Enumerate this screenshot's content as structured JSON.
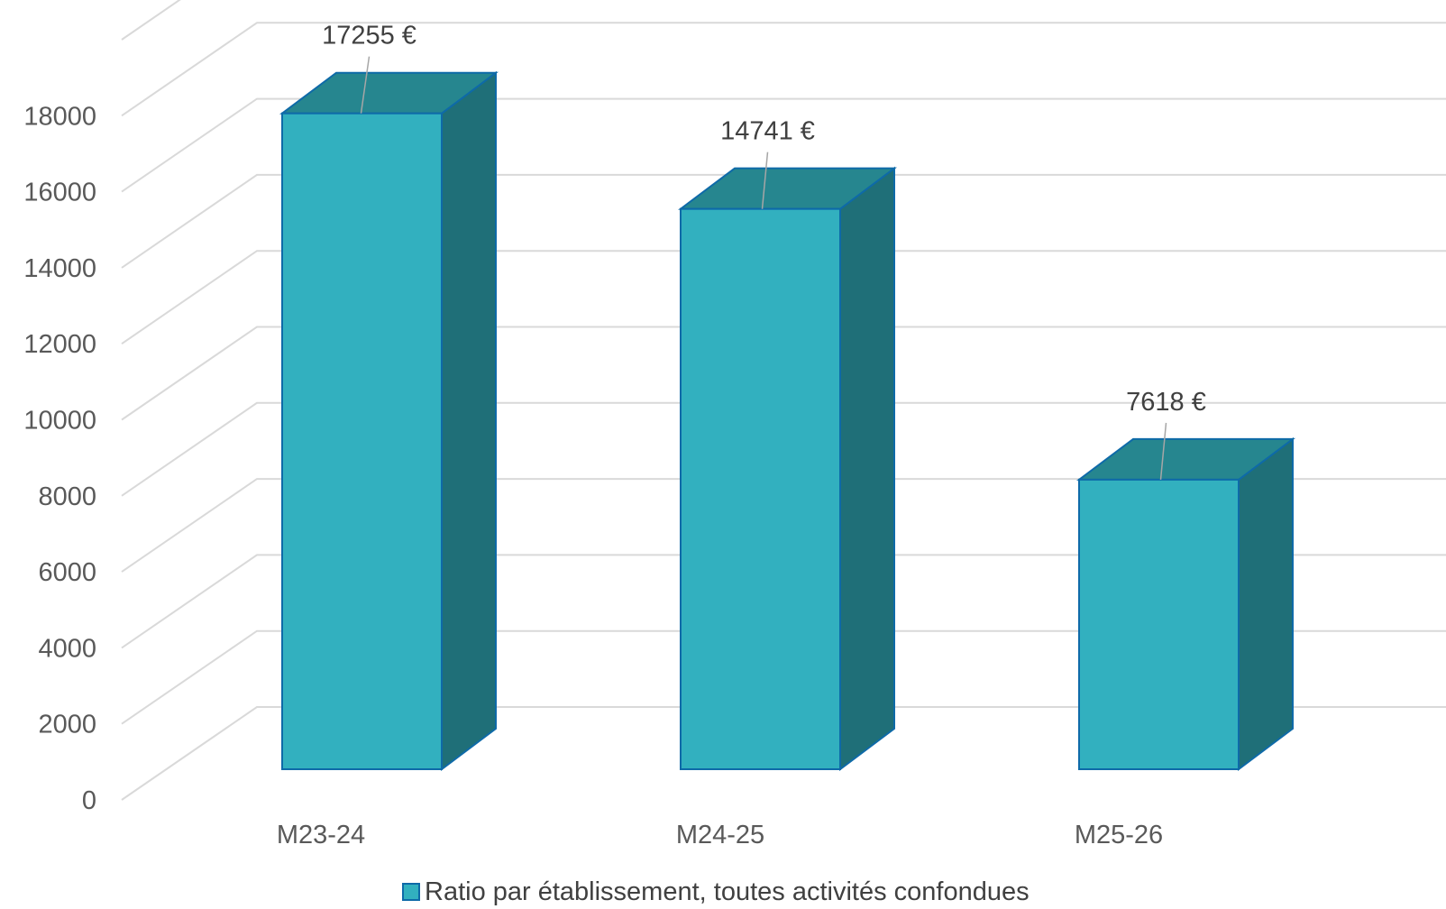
{
  "chart_data": {
    "type": "bar",
    "style": "3d-column",
    "categories": [
      "M23-24",
      "M24-25",
      "M25-26"
    ],
    "series": [
      {
        "name": "Ratio par établissement, toutes activités confondues",
        "values": [
          17255,
          14741,
          7618
        ],
        "data_labels": [
          "17255 €",
          "14741 €",
          "7618 €"
        ]
      }
    ],
    "title": "",
    "xlabel": "",
    "ylabel": "",
    "ylim": [
      0,
      20000
    ],
    "yticks": [
      "0",
      "2000",
      "4000",
      "6000",
      "8000",
      "10000",
      "12000",
      "14000",
      "16000",
      "18000"
    ],
    "grid": true,
    "legend": "bottom",
    "colors": {
      "front": "#32b0bf",
      "top": "#26868f",
      "side": "#1f6f78",
      "edge": "#0e6aa8",
      "grid": "#d9d9d9",
      "leader": "#a6a6a6"
    }
  }
}
